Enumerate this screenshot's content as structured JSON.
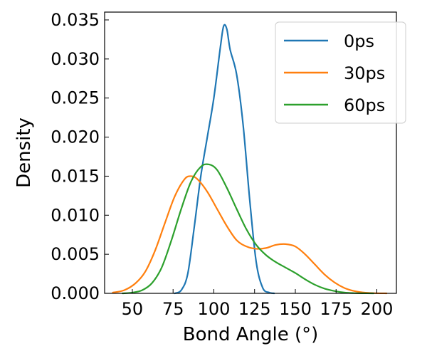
{
  "chart_data": {
    "type": "line",
    "title": "",
    "xlabel": "Bond Angle (°)",
    "ylabel": "Density",
    "xlim": [
      33,
      212
    ],
    "ylim": [
      0,
      0.036
    ],
    "xticks": [
      50,
      75,
      100,
      125,
      150,
      175,
      200
    ],
    "xtick_labels": [
      "50",
      "75",
      "100",
      "125",
      "150",
      "175",
      "200"
    ],
    "yticks": [
      0.0,
      0.005,
      0.01,
      0.015,
      0.02,
      0.025,
      0.03,
      0.035
    ],
    "ytick_labels": [
      "0.000",
      "0.005",
      "0.010",
      "0.015",
      "0.020",
      "0.025",
      "0.030",
      "0.035"
    ],
    "grid": false,
    "legend_position": "top-right",
    "series": [
      {
        "name": "0ps",
        "color": "#1f77b4",
        "x": [
          76,
          80,
          84,
          88,
          92,
          96,
          100,
          104,
          106,
          108,
          110,
          114,
          118,
          122,
          126,
          130,
          134,
          137
        ],
        "y": [
          0.0,
          0.0004,
          0.0025,
          0.0085,
          0.015,
          0.02,
          0.025,
          0.0315,
          0.0342,
          0.0338,
          0.0312,
          0.028,
          0.0215,
          0.012,
          0.004,
          0.0007,
          0.0001,
          0.0
        ]
      },
      {
        "name": "30ps",
        "color": "#ff7f0e",
        "x": [
          38,
          45,
          52,
          58,
          64,
          70,
          76,
          82,
          86,
          90,
          96,
          102,
          108,
          114,
          120,
          126,
          132,
          138,
          144,
          150,
          156,
          162,
          168,
          174,
          180,
          186,
          192,
          198,
          206
        ],
        "y": [
          0.0001,
          0.0004,
          0.0013,
          0.0028,
          0.0055,
          0.009,
          0.0124,
          0.0146,
          0.015,
          0.0146,
          0.013,
          0.0108,
          0.0086,
          0.0068,
          0.006,
          0.0057,
          0.0058,
          0.0062,
          0.0063,
          0.006,
          0.005,
          0.0037,
          0.0024,
          0.0014,
          0.0007,
          0.0003,
          0.0001,
          3e-05,
          0.0
        ]
      },
      {
        "name": "60ps",
        "color": "#2ca02c",
        "x": [
          44,
          50,
          56,
          62,
          68,
          74,
          80,
          86,
          92,
          97,
          102,
          108,
          114,
          120,
          126,
          132,
          138,
          144,
          150,
          156,
          162,
          168,
          174,
          180,
          186,
          192,
          198
        ],
        "y": [
          0.0,
          0.0001,
          0.0004,
          0.0013,
          0.0033,
          0.0068,
          0.0108,
          0.0143,
          0.0162,
          0.0165,
          0.0158,
          0.0135,
          0.0108,
          0.0082,
          0.0062,
          0.0049,
          0.004,
          0.0033,
          0.0026,
          0.0018,
          0.0011,
          0.0006,
          0.0003,
          0.0001,
          3e-05,
          1e-05,
          0.0
        ]
      }
    ]
  }
}
